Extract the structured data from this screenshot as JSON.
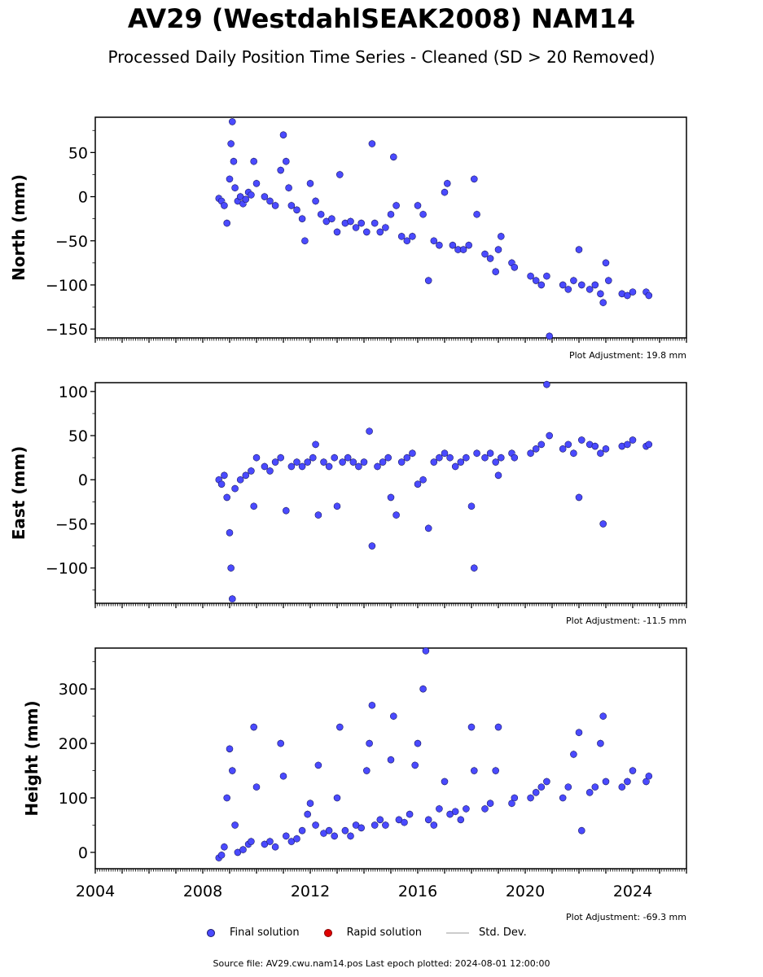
{
  "title": "AV29 (WestdahlSEAK2008) NAM14",
  "subtitle": "Processed Daily Position Time Series - Cleaned (SD > 20 Removed)",
  "legend": {
    "final": "Final solution",
    "rapid": "Rapid solution",
    "std": "Std. Dev."
  },
  "source": "Source file: AV29.cwu.nam14.pos  Last epoch plotted: 2024-08-01 12:00:00",
  "colors": {
    "final": "#4a4aff",
    "final_edge": "#1a1a6a",
    "rapid": "#e00000",
    "std": "#cccccc"
  },
  "chart_data": [
    {
      "type": "scatter",
      "ylabel": "North (mm)",
      "xlim": [
        2004.0,
        2026.0
      ],
      "ylim": [
        -160,
        90
      ],
      "yticks": [
        50,
        0,
        -50,
        -100,
        -150
      ],
      "adjustment": "Plot Adjustment: 19.8 mm",
      "series": [
        {
          "values": [
            [
              2008.6,
              -2
            ],
            [
              2008.7,
              -5
            ],
            [
              2008.8,
              -10
            ],
            [
              2008.9,
              -30
            ],
            [
              2009.0,
              20
            ],
            [
              2009.05,
              60
            ],
            [
              2009.1,
              85
            ],
            [
              2009.15,
              40
            ],
            [
              2009.2,
              10
            ],
            [
              2009.3,
              -5
            ],
            [
              2009.4,
              0
            ],
            [
              2009.5,
              -8
            ],
            [
              2009.6,
              -3
            ],
            [
              2009.7,
              5
            ],
            [
              2009.8,
              2
            ],
            [
              2009.9,
              40
            ],
            [
              2010.0,
              15
            ],
            [
              2010.3,
              0
            ],
            [
              2010.5,
              -5
            ],
            [
              2010.7,
              -10
            ],
            [
              2010.9,
              30
            ],
            [
              2011.0,
              70
            ],
            [
              2011.1,
              40
            ],
            [
              2011.2,
              10
            ],
            [
              2011.3,
              -10
            ],
            [
              2011.5,
              -15
            ],
            [
              2011.7,
              -25
            ],
            [
              2011.8,
              -50
            ],
            [
              2012.0,
              15
            ],
            [
              2012.2,
              -5
            ],
            [
              2012.4,
              -20
            ],
            [
              2012.6,
              -28
            ],
            [
              2012.8,
              -25
            ],
            [
              2013.0,
              -40
            ],
            [
              2013.1,
              25
            ],
            [
              2013.3,
              -30
            ],
            [
              2013.5,
              -28
            ],
            [
              2013.7,
              -35
            ],
            [
              2013.9,
              -30
            ],
            [
              2014.1,
              -40
            ],
            [
              2014.3,
              60
            ],
            [
              2014.4,
              -30
            ],
            [
              2014.6,
              -40
            ],
            [
              2014.8,
              -35
            ],
            [
              2015.0,
              -20
            ],
            [
              2015.1,
              45
            ],
            [
              2015.2,
              -10
            ],
            [
              2015.4,
              -45
            ],
            [
              2015.6,
              -50
            ],
            [
              2015.8,
              -45
            ],
            [
              2016.0,
              -10
            ],
            [
              2016.2,
              -20
            ],
            [
              2016.4,
              -95
            ],
            [
              2016.6,
              -50
            ],
            [
              2016.8,
              -55
            ],
            [
              2017.0,
              5
            ],
            [
              2017.1,
              15
            ],
            [
              2017.3,
              -55
            ],
            [
              2017.5,
              -60
            ],
            [
              2017.7,
              -60
            ],
            [
              2017.9,
              -55
            ],
            [
              2018.1,
              20
            ],
            [
              2018.2,
              -20
            ],
            [
              2018.5,
              -65
            ],
            [
              2018.7,
              -70
            ],
            [
              2018.9,
              -85
            ],
            [
              2019.0,
              -60
            ],
            [
              2019.1,
              -45
            ],
            [
              2019.5,
              -75
            ],
            [
              2019.6,
              -80
            ],
            [
              2020.2,
              -90
            ],
            [
              2020.4,
              -95
            ],
            [
              2020.6,
              -100
            ],
            [
              2020.8,
              -90
            ],
            [
              2020.9,
              -158
            ],
            [
              2021.4,
              -100
            ],
            [
              2021.6,
              -105
            ],
            [
              2021.8,
              -95
            ],
            [
              2022.0,
              -60
            ],
            [
              2022.1,
              -100
            ],
            [
              2022.4,
              -105
            ],
            [
              2022.6,
              -100
            ],
            [
              2022.8,
              -110
            ],
            [
              2022.9,
              -120
            ],
            [
              2023.0,
              -75
            ],
            [
              2023.1,
              -95
            ],
            [
              2023.6,
              -110
            ],
            [
              2023.8,
              -112
            ],
            [
              2024.0,
              -108
            ],
            [
              2024.5,
              -108
            ],
            [
              2024.6,
              -112
            ]
          ]
        }
      ]
    },
    {
      "type": "scatter",
      "ylabel": "East (mm)",
      "xlim": [
        2004.0,
        2026.0
      ],
      "ylim": [
        -140,
        110
      ],
      "yticks": [
        100,
        50,
        0,
        -50,
        -100
      ],
      "adjustment": "Plot Adjustment: -11.5 mm",
      "series": [
        {
          "values": [
            [
              2008.6,
              0
            ],
            [
              2008.7,
              -5
            ],
            [
              2008.8,
              5
            ],
            [
              2008.9,
              -20
            ],
            [
              2009.0,
              -60
            ],
            [
              2009.05,
              -100
            ],
            [
              2009.1,
              -135
            ],
            [
              2009.2,
              -10
            ],
            [
              2009.4,
              0
            ],
            [
              2009.6,
              5
            ],
            [
              2009.8,
              10
            ],
            [
              2009.9,
              -30
            ],
            [
              2010.0,
              25
            ],
            [
              2010.3,
              15
            ],
            [
              2010.5,
              10
            ],
            [
              2010.7,
              20
            ],
            [
              2010.9,
              25
            ],
            [
              2011.1,
              -35
            ],
            [
              2011.3,
              15
            ],
            [
              2011.5,
              20
            ],
            [
              2011.7,
              15
            ],
            [
              2011.9,
              20
            ],
            [
              2012.1,
              25
            ],
            [
              2012.2,
              40
            ],
            [
              2012.3,
              -40
            ],
            [
              2012.5,
              20
            ],
            [
              2012.7,
              15
            ],
            [
              2012.9,
              25
            ],
            [
              2013.0,
              -30
            ],
            [
              2013.2,
              20
            ],
            [
              2013.4,
              25
            ],
            [
              2013.6,
              20
            ],
            [
              2013.8,
              15
            ],
            [
              2014.0,
              20
            ],
            [
              2014.2,
              55
            ],
            [
              2014.3,
              -75
            ],
            [
              2014.5,
              15
            ],
            [
              2014.7,
              20
            ],
            [
              2014.9,
              25
            ],
            [
              2015.0,
              -20
            ],
            [
              2015.2,
              -40
            ],
            [
              2015.4,
              20
            ],
            [
              2015.6,
              25
            ],
            [
              2015.8,
              30
            ],
            [
              2016.0,
              -5
            ],
            [
              2016.2,
              0
            ],
            [
              2016.4,
              -55
            ],
            [
              2016.6,
              20
            ],
            [
              2016.8,
              25
            ],
            [
              2017.0,
              30
            ],
            [
              2017.2,
              25
            ],
            [
              2017.4,
              15
            ],
            [
              2017.6,
              20
            ],
            [
              2017.8,
              25
            ],
            [
              2018.0,
              -30
            ],
            [
              2018.1,
              -100
            ],
            [
              2018.2,
              30
            ],
            [
              2018.5,
              25
            ],
            [
              2018.7,
              30
            ],
            [
              2018.9,
              20
            ],
            [
              2019.0,
              5
            ],
            [
              2019.1,
              25
            ],
            [
              2019.5,
              30
            ],
            [
              2019.6,
              25
            ],
            [
              2020.2,
              30
            ],
            [
              2020.4,
              35
            ],
            [
              2020.6,
              40
            ],
            [
              2020.8,
              108
            ],
            [
              2020.9,
              50
            ],
            [
              2021.4,
              35
            ],
            [
              2021.6,
              40
            ],
            [
              2021.8,
              30
            ],
            [
              2022.0,
              -20
            ],
            [
              2022.1,
              45
            ],
            [
              2022.4,
              40
            ],
            [
              2022.6,
              38
            ],
            [
              2022.8,
              30
            ],
            [
              2022.9,
              -50
            ],
            [
              2023.0,
              35
            ],
            [
              2023.6,
              38
            ],
            [
              2023.8,
              40
            ],
            [
              2024.0,
              45
            ],
            [
              2024.5,
              38
            ],
            [
              2024.6,
              40
            ]
          ]
        }
      ]
    },
    {
      "type": "scatter",
      "ylabel": "Height (mm)",
      "xlim": [
        2004.0,
        2026.0
      ],
      "ylim": [
        -30,
        375
      ],
      "yticks": [
        300,
        200,
        100,
        0
      ],
      "xticks": [
        2004,
        2008,
        2012,
        2016,
        2020,
        2024
      ],
      "adjustment": "Plot Adjustment: -69.3 mm",
      "series": [
        {
          "values": [
            [
              2008.6,
              -10
            ],
            [
              2008.7,
              -5
            ],
            [
              2008.8,
              10
            ],
            [
              2008.9,
              100
            ],
            [
              2009.0,
              190
            ],
            [
              2009.1,
              150
            ],
            [
              2009.2,
              50
            ],
            [
              2009.3,
              0
            ],
            [
              2009.5,
              5
            ],
            [
              2009.7,
              15
            ],
            [
              2009.8,
              20
            ],
            [
              2009.9,
              230
            ],
            [
              2010.0,
              120
            ],
            [
              2010.3,
              15
            ],
            [
              2010.5,
              20
            ],
            [
              2010.7,
              10
            ],
            [
              2010.9,
              200
            ],
            [
              2011.0,
              140
            ],
            [
              2011.1,
              30
            ],
            [
              2011.3,
              20
            ],
            [
              2011.5,
              25
            ],
            [
              2011.7,
              40
            ],
            [
              2011.9,
              70
            ],
            [
              2012.0,
              90
            ],
            [
              2012.2,
              50
            ],
            [
              2012.3,
              160
            ],
            [
              2012.5,
              35
            ],
            [
              2012.7,
              40
            ],
            [
              2012.9,
              30
            ],
            [
              2013.0,
              100
            ],
            [
              2013.1,
              230
            ],
            [
              2013.3,
              40
            ],
            [
              2013.5,
              30
            ],
            [
              2013.7,
              50
            ],
            [
              2013.9,
              45
            ],
            [
              2014.1,
              150
            ],
            [
              2014.2,
              200
            ],
            [
              2014.3,
              270
            ],
            [
              2014.4,
              50
            ],
            [
              2014.6,
              60
            ],
            [
              2014.8,
              50
            ],
            [
              2015.0,
              170
            ],
            [
              2015.1,
              250
            ],
            [
              2015.3,
              60
            ],
            [
              2015.5,
              55
            ],
            [
              2015.7,
              70
            ],
            [
              2015.9,
              160
            ],
            [
              2016.0,
              200
            ],
            [
              2016.2,
              300
            ],
            [
              2016.3,
              370
            ],
            [
              2016.4,
              60
            ],
            [
              2016.6,
              50
            ],
            [
              2016.8,
              80
            ],
            [
              2017.0,
              130
            ],
            [
              2017.2,
              70
            ],
            [
              2017.4,
              75
            ],
            [
              2017.6,
              60
            ],
            [
              2017.8,
              80
            ],
            [
              2018.0,
              230
            ],
            [
              2018.1,
              150
            ],
            [
              2018.5,
              80
            ],
            [
              2018.7,
              90
            ],
            [
              2018.9,
              150
            ],
            [
              2019.0,
              230
            ],
            [
              2019.5,
              90
            ],
            [
              2019.6,
              100
            ],
            [
              2020.2,
              100
            ],
            [
              2020.4,
              110
            ],
            [
              2020.6,
              120
            ],
            [
              2020.8,
              130
            ],
            [
              2021.4,
              100
            ],
            [
              2021.6,
              120
            ],
            [
              2021.8,
              180
            ],
            [
              2022.0,
              220
            ],
            [
              2022.1,
              40
            ],
            [
              2022.4,
              110
            ],
            [
              2022.6,
              120
            ],
            [
              2022.8,
              200
            ],
            [
              2022.9,
              250
            ],
            [
              2023.0,
              130
            ],
            [
              2023.6,
              120
            ],
            [
              2023.8,
              130
            ],
            [
              2024.0,
              150
            ],
            [
              2024.5,
              130
            ],
            [
              2024.6,
              140
            ]
          ]
        }
      ]
    }
  ]
}
